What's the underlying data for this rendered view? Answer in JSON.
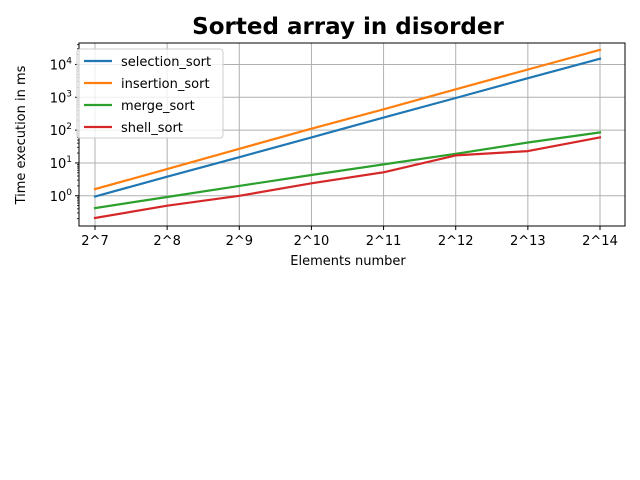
{
  "chart_data": {
    "type": "line",
    "title": "Sorted array in disorder",
    "xlabel": "Elements number",
    "ylabel": "Time execution in ms",
    "categories": [
      "2^7",
      "2^8",
      "2^9",
      "2^10",
      "2^11",
      "2^12",
      "2^13",
      "2^14"
    ],
    "y_scale": "log",
    "ylim": [
      0.12,
      45000
    ],
    "y_ticks": [
      {
        "value": 1,
        "base": "10",
        "exp": "0"
      },
      {
        "value": 10,
        "base": "10",
        "exp": "1"
      },
      {
        "value": 100,
        "base": "10",
        "exp": "2"
      },
      {
        "value": 1000,
        "base": "10",
        "exp": "3"
      },
      {
        "value": 10000,
        "base": "10",
        "exp": "4"
      }
    ],
    "grid": true,
    "legend_position": "top-left",
    "series": [
      {
        "name": "selection_sort",
        "color": "#1f77b4",
        "values": [
          0.95,
          3.8,
          15,
          60,
          240,
          950,
          3800,
          15000
        ]
      },
      {
        "name": "insertion_sort",
        "color": "#ff7f0e",
        "values": [
          1.6,
          6.5,
          27,
          110,
          430,
          1750,
          7000,
          28000
        ]
      },
      {
        "name": "merge_sort",
        "color": "#2ca02c",
        "values": [
          0.42,
          0.92,
          2.0,
          4.3,
          9.0,
          19,
          42,
          85
        ]
      },
      {
        "name": "shell_sort",
        "color": "#d62728",
        "values": [
          0.21,
          0.5,
          1.0,
          2.4,
          5.2,
          17,
          23,
          60
        ]
      }
    ]
  }
}
